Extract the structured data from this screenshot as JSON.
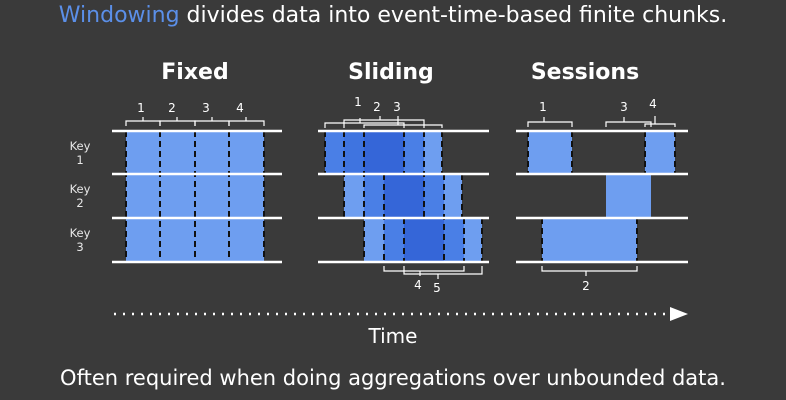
{
  "header": {
    "highlight": "Windowing",
    "rest": " divides data into event-time-based finite chunks."
  },
  "panels": {
    "fixed": {
      "title": "Fixed",
      "window_labels": [
        "1",
        "2",
        "3",
        "4"
      ]
    },
    "sliding": {
      "title": "Sliding",
      "window_labels_top": [
        "1",
        "2",
        "3"
      ],
      "window_labels_bottom": [
        "4",
        "5"
      ]
    },
    "sessions": {
      "title": "Sessions",
      "window_labels_top": [
        "1",
        "3",
        "4"
      ],
      "window_labels_bottom": [
        "2"
      ]
    }
  },
  "keys": [
    {
      "line1": "Key",
      "line2": "1"
    },
    {
      "line1": "Key",
      "line2": "2"
    },
    {
      "line1": "Key",
      "line2": "3"
    }
  ],
  "axis": {
    "label": "Time"
  },
  "footer": {
    "text": "Often required when doing aggregations over unbounded data."
  },
  "colors": {
    "background": "#3a3a3a",
    "accent_text": "#5b8fe8",
    "light_blue": "#6e9ef0",
    "medium_blue": "#4a7fe6",
    "dark_blue": "#3566d8",
    "line": "#ffffff"
  }
}
